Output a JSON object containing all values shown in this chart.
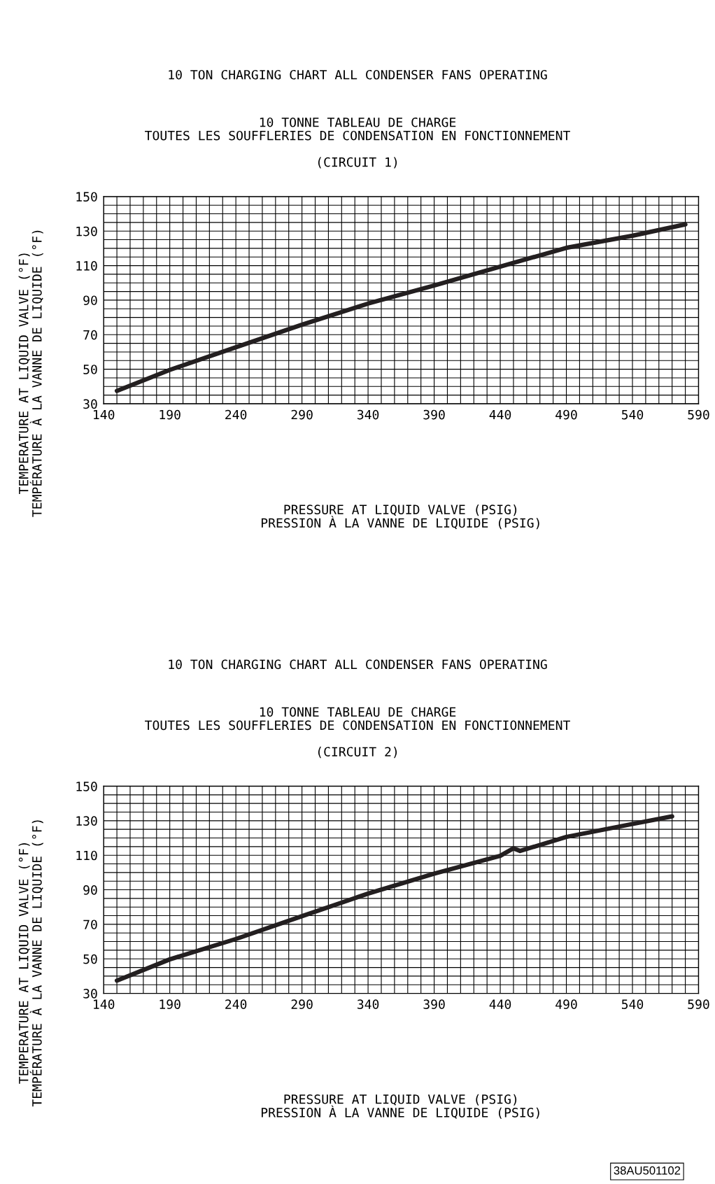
{
  "chart_data": [
    {
      "type": "line",
      "title": "10 TON CHARGING CHART ALL CONDENSER FANS OPERATING",
      "subtitle": "10 TONNE TABLEAU DE CHARGE\nTOUTES LES SOUFFLERIES DE CONDENSATION EN FONCTIONNEMENT\n\n(CIRCUIT 1)",
      "xlabel": "PRESSURE AT LIQUID VALVE (PSIG)\nPRESSION À LA VANNE DE LIQUIDE (PSIG)",
      "ylabel": "TEMPERATURE AT LIQUID VALVE (°F)\nTEMPÉRATURE À LA VANNE DE LIQUIDE (°F)",
      "series": [
        {
          "color": "#231f20",
          "x": [
            150,
            190,
            240,
            290,
            340,
            390,
            440,
            490,
            540,
            580
          ],
          "values": [
            37.4,
            49.6,
            62.7,
            75.8,
            88,
            98.5,
            109.4,
            120.3,
            127.3,
            133.9
          ]
        }
      ],
      "xlim": [
        140,
        590
      ],
      "ylim": [
        30,
        150
      ],
      "xticks": [
        140,
        {
          "value": 150,
          "label": null
        },
        {
          "value": 160,
          "label": null
        },
        {
          "value": 170,
          "label": null
        },
        {
          "value": 180,
          "label": null
        },
        190,
        {
          "value": 200,
          "label": null
        },
        {
          "value": 210,
          "label": null
        },
        {
          "value": 220,
          "label": null
        },
        {
          "value": 230,
          "label": null
        },
        240,
        {
          "value": 250,
          "label": null
        },
        {
          "value": 260,
          "label": null
        },
        {
          "value": 270,
          "label": null
        },
        {
          "value": 280,
          "label": null
        },
        290,
        {
          "value": 300,
          "label": null
        },
        {
          "value": 310,
          "label": null
        },
        {
          "value": 320,
          "label": null
        },
        {
          "value": 330,
          "label": null
        },
        340,
        {
          "value": 350,
          "label": null
        },
        {
          "value": 360,
          "label": null
        },
        {
          "value": 370,
          "label": null
        },
        {
          "value": 380,
          "label": null
        },
        390,
        {
          "value": 400,
          "label": null
        },
        {
          "value": 410,
          "label": null
        },
        {
          "value": 420,
          "label": null
        },
        {
          "value": 430,
          "label": null
        },
        440,
        {
          "value": 450,
          "label": null
        },
        {
          "value": 460,
          "label": null
        },
        {
          "value": 470,
          "label": null
        },
        {
          "value": 480,
          "label": null
        },
        490,
        {
          "value": 500,
          "label": null
        },
        {
          "value": 510,
          "label": null
        },
        {
          "value": 520,
          "label": null
        },
        {
          "value": 530,
          "label": null
        },
        540,
        {
          "value": 550,
          "label": null
        },
        {
          "value": 560,
          "label": null
        },
        {
          "value": 570,
          "label": null
        },
        {
          "value": 580,
          "label": null
        },
        590
      ],
      "yticks": [
        30,
        {
          "value": 35,
          "label": null
        },
        {
          "value": 40,
          "label": null
        },
        {
          "value": 45,
          "label": null
        },
        50,
        {
          "value": 55,
          "label": null
        },
        {
          "value": 60,
          "label": null
        },
        {
          "value": 65,
          "label": null
        },
        70,
        {
          "value": 75,
          "label": null
        },
        {
          "value": 80,
          "label": null
        },
        {
          "value": 85,
          "label": null
        },
        90,
        {
          "value": 95,
          "label": null
        },
        {
          "value": 100,
          "label": null
        },
        {
          "value": 105,
          "label": null
        },
        110,
        {
          "value": 115,
          "label": null
        },
        {
          "value": 120,
          "label": null
        },
        {
          "value": 125,
          "label": null
        },
        130,
        {
          "value": 135,
          "label": null
        },
        {
          "value": 140,
          "label": null
        },
        {
          "value": 145,
          "label": null
        },
        150
      ],
      "grid": true,
      "line_style": "solid",
      "marker": "none",
      "legend": false
    },
    {
      "type": "line",
      "title": "10 TON CHARGING CHART ALL CONDENSER FANS OPERATING",
      "subtitle": "10 TONNE TABLEAU DE CHARGE\nTOUTES LES SOUFFLERIES DE CONDENSATION EN FONCTIONNEMENT\n\n(CIRCUIT 2)",
      "xlabel": "PRESSURE AT LIQUID VALVE (PSIG)\nPRESSION À LA VANNE DE LIQUIDE (PSIG)",
      "ylabel": "TEMPERATURE AT LIQUID VALVE (°F)\nTEMPÉRATURE À LA VANNE DE LIQUIDE (°F)",
      "series": [
        {
          "color": "#231f20",
          "x": [
            150,
            190,
            240,
            290,
            340,
            390,
            440,
            450,
            455,
            490,
            540,
            570
          ],
          "values": [
            37.4,
            49.7,
            61.5,
            74.7,
            87.8,
            99.3,
            109.7,
            114,
            112.5,
            120.6,
            128.1,
            132.5
          ]
        }
      ],
      "xlim": [
        140,
        590
      ],
      "ylim": [
        30,
        150
      ],
      "xticks": [
        140,
        {
          "value": 150,
          "label": null
        },
        {
          "value": 160,
          "label": null
        },
        {
          "value": 170,
          "label": null
        },
        {
          "value": 180,
          "label": null
        },
        190,
        {
          "value": 200,
          "label": null
        },
        {
          "value": 210,
          "label": null
        },
        {
          "value": 220,
          "label": null
        },
        {
          "value": 230,
          "label": null
        },
        240,
        {
          "value": 250,
          "label": null
        },
        {
          "value": 260,
          "label": null
        },
        {
          "value": 270,
          "label": null
        },
        {
          "value": 280,
          "label": null
        },
        290,
        {
          "value": 300,
          "label": null
        },
        {
          "value": 310,
          "label": null
        },
        {
          "value": 320,
          "label": null
        },
        {
          "value": 330,
          "label": null
        },
        340,
        {
          "value": 350,
          "label": null
        },
        {
          "value": 360,
          "label": null
        },
        {
          "value": 370,
          "label": null
        },
        {
          "value": 380,
          "label": null
        },
        390,
        {
          "value": 400,
          "label": null
        },
        {
          "value": 410,
          "label": null
        },
        {
          "value": 420,
          "label": null
        },
        {
          "value": 430,
          "label": null
        },
        440,
        {
          "value": 450,
          "label": null
        },
        {
          "value": 460,
          "label": null
        },
        {
          "value": 470,
          "label": null
        },
        {
          "value": 480,
          "label": null
        },
        490,
        {
          "value": 500,
          "label": null
        },
        {
          "value": 510,
          "label": null
        },
        {
          "value": 520,
          "label": null
        },
        {
          "value": 530,
          "label": null
        },
        540,
        {
          "value": 550,
          "label": null
        },
        {
          "value": 560,
          "label": null
        },
        {
          "value": 570,
          "label": null
        },
        {
          "value": 580,
          "label": null
        },
        590
      ],
      "yticks": [
        30,
        {
          "value": 35,
          "label": null
        },
        {
          "value": 40,
          "label": null
        },
        {
          "value": 45,
          "label": null
        },
        50,
        {
          "value": 55,
          "label": null
        },
        {
          "value": 60,
          "label": null
        },
        {
          "value": 65,
          "label": null
        },
        70,
        {
          "value": 75,
          "label": null
        },
        {
          "value": 80,
          "label": null
        },
        {
          "value": 85,
          "label": null
        },
        90,
        {
          "value": 95,
          "label": null
        },
        {
          "value": 100,
          "label": null
        },
        {
          "value": 105,
          "label": null
        },
        110,
        {
          "value": 115,
          "label": null
        },
        {
          "value": 120,
          "label": null
        },
        {
          "value": 125,
          "label": null
        },
        130,
        {
          "value": 135,
          "label": null
        },
        {
          "value": 140,
          "label": null
        },
        {
          "value": 145,
          "label": null
        },
        150
      ],
      "grid": true,
      "line_style": "solid",
      "marker": "none",
      "legend": false,
      "annotations": [
        "38AU501102"
      ]
    }
  ]
}
